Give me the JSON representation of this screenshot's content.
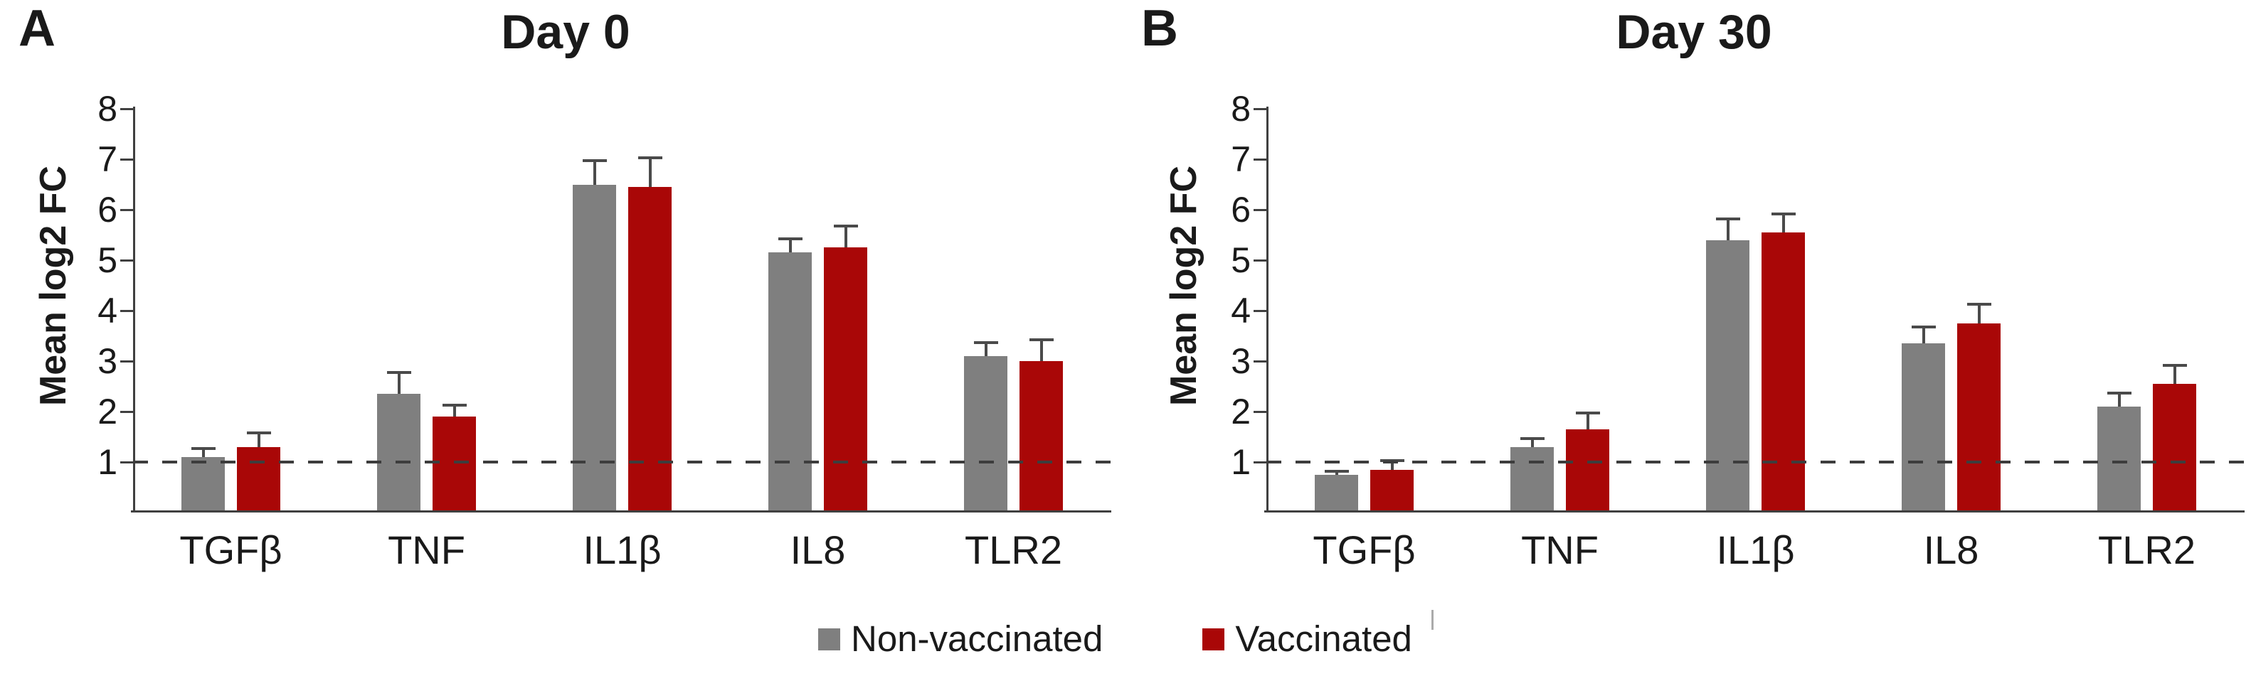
{
  "figure_background": "#ffffff",
  "text_color": "#1a1a1a",
  "axis_color": "#404040",
  "error_bar_color": "#4a4a4a",
  "reference_line_color": "#3d3d3d",
  "legend": {
    "items": [
      {
        "label": "Non-vaccinated",
        "color": "#7F7F7F"
      },
      {
        "label": "Vaccinated",
        "color": "#A90707"
      }
    ]
  },
  "chart_data": [
    {
      "type": "bar",
      "panel_letter": "A",
      "title": "Day 0",
      "ylabel": "Mean log2 FC",
      "xlabel": "",
      "ylim": [
        0,
        8
      ],
      "yticks": [
        1,
        2,
        3,
        4,
        5,
        6,
        7,
        8
      ],
      "reference_line_y": 1,
      "grid": false,
      "legend_position": "bottom-center-shared",
      "categories": [
        "TGFβ",
        "TNF",
        "IL1β",
        "IL8",
        "TLR2"
      ],
      "series": [
        {
          "name": "Non-vaccinated",
          "color": "#7F7F7F",
          "values": [
            1.1,
            2.35,
            6.5,
            5.15,
            3.1
          ],
          "error_plus": [
            0.2,
            0.45,
            0.5,
            0.3,
            0.3
          ]
        },
        {
          "name": "Vaccinated",
          "color": "#A90707",
          "values": [
            1.3,
            1.9,
            6.45,
            5.25,
            3.0
          ],
          "error_plus": [
            0.3,
            0.25,
            0.6,
            0.45,
            0.45
          ]
        }
      ]
    },
    {
      "type": "bar",
      "panel_letter": "B",
      "title": "Day 30",
      "ylabel": "Mean log2 FC",
      "xlabel": "",
      "ylim": [
        0,
        8
      ],
      "yticks": [
        1,
        2,
        3,
        4,
        5,
        6,
        7,
        8
      ],
      "reference_line_y": 1,
      "grid": false,
      "legend_position": "bottom-center-shared",
      "categories": [
        "TGFβ",
        "TNF",
        "IL1β",
        "IL8",
        "TLR2"
      ],
      "series": [
        {
          "name": "Non-vaccinated",
          "color": "#7F7F7F",
          "values": [
            0.75,
            1.3,
            5.4,
            3.35,
            2.1
          ],
          "error_plus": [
            0.1,
            0.2,
            0.45,
            0.35,
            0.3
          ]
        },
        {
          "name": "Vaccinated",
          "color": "#A90707",
          "values": [
            0.85,
            1.65,
            5.55,
            3.75,
            2.55
          ],
          "error_plus": [
            0.2,
            0.35,
            0.4,
            0.4,
            0.4
          ]
        }
      ]
    }
  ]
}
